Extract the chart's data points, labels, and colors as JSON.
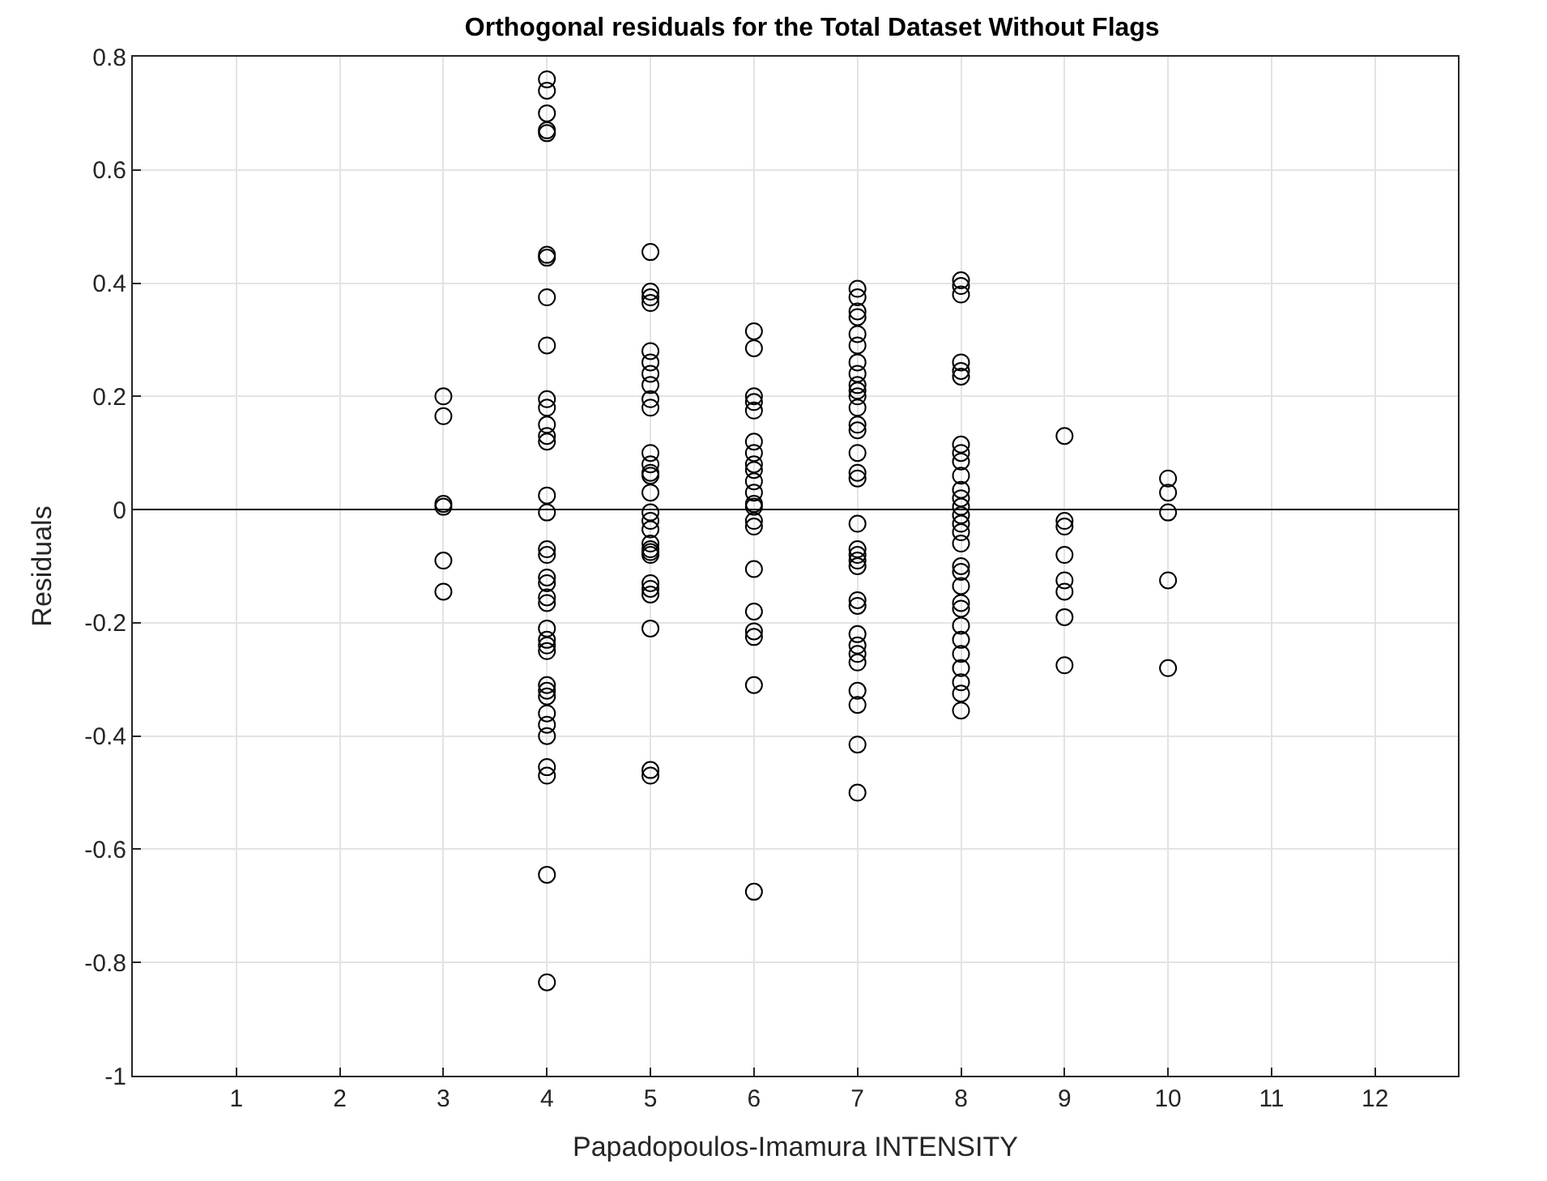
{
  "chart_data": {
    "type": "scatter",
    "title": "Orthogonal residuals for the Total Dataset Without Flags",
    "xlabel": "Papadopoulos-Imamura INTENSITY",
    "ylabel": "Residuals",
    "series": [
      {
        "color": "#000000",
        "x": [
          3,
          3,
          3,
          3,
          3,
          3
        ],
        "values": [
          0.2,
          0.165,
          0.01,
          0.005,
          -0.09,
          -0.145
        ]
      },
      {
        "color": "#000000",
        "x": [
          4,
          4,
          4,
          4,
          4,
          4,
          4,
          4,
          4,
          4,
          4,
          4,
          4,
          4,
          4,
          4,
          4,
          4,
          4,
          4,
          4,
          4,
          4,
          4,
          4,
          4,
          4,
          4,
          4,
          4,
          4,
          4,
          4,
          4,
          4,
          4
        ],
        "values": [
          0.76,
          0.74,
          0.7,
          0.67,
          0.665,
          0.45,
          0.445,
          0.375,
          0.29,
          0.195,
          0.18,
          0.15,
          0.13,
          0.12,
          0.025,
          -0.005,
          -0.07,
          -0.08,
          -0.12,
          -0.13,
          -0.155,
          -0.165,
          -0.21,
          -0.23,
          -0.24,
          -0.25,
          -0.31,
          -0.32,
          -0.33,
          -0.36,
          -0.38,
          -0.4,
          -0.455,
          -0.47,
          -0.645,
          -0.835
        ]
      },
      {
        "color": "#000000",
        "x": [
          5,
          5,
          5,
          5,
          5,
          5,
          5,
          5,
          5,
          5,
          5,
          5,
          5,
          5,
          5,
          5,
          5,
          5,
          5,
          5,
          5,
          5,
          5,
          5,
          5,
          5,
          5,
          5
        ],
        "values": [
          0.455,
          0.385,
          0.375,
          0.365,
          0.28,
          0.26,
          0.24,
          0.22,
          0.195,
          0.18,
          0.1,
          0.08,
          0.065,
          0.06,
          0.03,
          -0.005,
          -0.02,
          -0.035,
          -0.06,
          -0.07,
          -0.075,
          -0.08,
          -0.13,
          -0.14,
          -0.15,
          -0.21,
          -0.46,
          -0.47
        ]
      },
      {
        "color": "#000000",
        "x": [
          6,
          6,
          6,
          6,
          6,
          6,
          6,
          6,
          6,
          6,
          6,
          6,
          6,
          6,
          6,
          6,
          6,
          6,
          6,
          6,
          6
        ],
        "values": [
          0.315,
          0.285,
          0.2,
          0.19,
          0.175,
          0.12,
          0.1,
          0.08,
          0.07,
          0.05,
          0.03,
          0.01,
          0.005,
          -0.02,
          -0.03,
          -0.105,
          -0.18,
          -0.215,
          -0.225,
          -0.31,
          -0.675
        ]
      },
      {
        "color": "#000000",
        "x": [
          7,
          7,
          7,
          7,
          7,
          7,
          7,
          7,
          7,
          7,
          7,
          7,
          7,
          7,
          7,
          7,
          7,
          7,
          7,
          7,
          7,
          7,
          7,
          7,
          7,
          7,
          7,
          7,
          7,
          7,
          7,
          7
        ],
        "values": [
          0.39,
          0.375,
          0.35,
          0.34,
          0.31,
          0.29,
          0.26,
          0.24,
          0.22,
          0.21,
          0.2,
          0.18,
          0.15,
          0.14,
          0.1,
          0.065,
          0.055,
          -0.025,
          -0.07,
          -0.08,
          -0.09,
          -0.1,
          -0.16,
          -0.17,
          -0.22,
          -0.24,
          -0.255,
          -0.27,
          -0.32,
          -0.345,
          -0.415,
          -0.5
        ]
      },
      {
        "color": "#000000",
        "x": [
          8,
          8,
          8,
          8,
          8,
          8,
          8,
          8,
          8,
          8,
          8,
          8,
          8,
          8,
          8,
          8,
          8,
          8,
          8,
          8,
          8,
          8,
          8,
          8,
          8,
          8,
          8,
          8,
          8
        ],
        "values": [
          0.405,
          0.395,
          0.38,
          0.26,
          0.245,
          0.235,
          0.115,
          0.1,
          0.085,
          0.06,
          0.035,
          0.02,
          0.005,
          -0.01,
          -0.025,
          -0.04,
          -0.06,
          -0.1,
          -0.11,
          -0.135,
          -0.165,
          -0.175,
          -0.205,
          -0.23,
          -0.255,
          -0.28,
          -0.305,
          -0.325,
          -0.355
        ]
      },
      {
        "color": "#000000",
        "x": [
          9,
          9,
          9,
          9,
          9,
          9,
          9,
          9
        ],
        "values": [
          0.13,
          -0.02,
          -0.03,
          -0.08,
          -0.125,
          -0.145,
          -0.19,
          -0.275
        ]
      },
      {
        "color": "#000000",
        "x": [
          10,
          10,
          10,
          10,
          10
        ],
        "values": [
          0.055,
          0.03,
          -0.005,
          -0.125,
          -0.28
        ]
      }
    ],
    "xlim": [
      0,
      12.8
    ],
    "xticks": [
      1,
      2,
      3,
      4,
      5,
      6,
      7,
      8,
      9,
      10,
      11,
      12
    ],
    "ylim": [
      -1,
      0.8
    ],
    "yticks": [
      -1,
      -0.8,
      -0.6,
      -0.4,
      -0.2,
      0,
      0.2,
      0.4,
      0.6,
      0.8
    ],
    "ref_lines": [
      {
        "axis": "y",
        "value": 0,
        "color": "#000000"
      }
    ],
    "grid": true,
    "marker": "circle"
  }
}
